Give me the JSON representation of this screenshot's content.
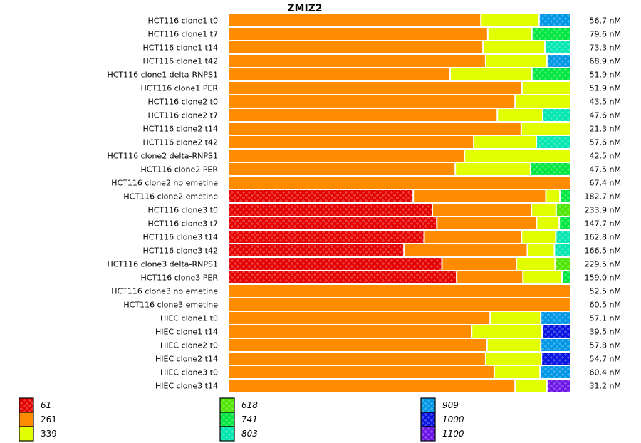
{
  "chart_data": {
    "type": "bar",
    "orientation": "horizontal",
    "stacked": "percent",
    "title": "ZMIZ2",
    "xlabel": "",
    "ylabel": "",
    "value_unit": "nM",
    "legend_position": "bottom",
    "legend": [
      {
        "key": "61",
        "color": "#e50000",
        "patterned": true,
        "italic": true
      },
      {
        "key": "261",
        "color": "#ff8c00",
        "patterned": false,
        "italic": false
      },
      {
        "key": "339",
        "color": "#e1ff00",
        "patterned": false,
        "italic": false
      },
      {
        "key": "618",
        "color": "#4ee600",
        "patterned": true,
        "italic": true
      },
      {
        "key": "741",
        "color": "#00e640",
        "patterned": true,
        "italic": true
      },
      {
        "key": "803",
        "color": "#00e6b0",
        "patterned": true,
        "italic": true
      },
      {
        "key": "909",
        "color": "#0096e6",
        "patterned": true,
        "italic": true
      },
      {
        "key": "1000",
        "color": "#0a14e0",
        "patterned": true,
        "italic": true
      },
      {
        "key": "1100",
        "color": "#6a14e6",
        "patterned": true,
        "italic": true
      }
    ],
    "rows": [
      {
        "label": "HCT116 clone1 t0",
        "total": "56.7 nM",
        "segments": [
          {
            "key": "261",
            "frac": 0.74
          },
          {
            "key": "339",
            "frac": 0.17
          },
          {
            "key": "909",
            "frac": 0.09
          }
        ]
      },
      {
        "label": "HCT116 clone1 t7",
        "total": "79.6 nM",
        "segments": [
          {
            "key": "261",
            "frac": 0.76
          },
          {
            "key": "339",
            "frac": 0.129
          },
          {
            "key": "741",
            "frac": 0.111
          }
        ]
      },
      {
        "label": "HCT116 clone1 t14",
        "total": "73.3 nM",
        "segments": [
          {
            "key": "261",
            "frac": 0.746
          },
          {
            "key": "339",
            "frac": 0.181
          },
          {
            "key": "803",
            "frac": 0.073
          }
        ]
      },
      {
        "label": "HCT116 clone1 t42",
        "total": "68.9 nM",
        "segments": [
          {
            "key": "261",
            "frac": 0.754
          },
          {
            "key": "339",
            "frac": 0.179
          },
          {
            "key": "909",
            "frac": 0.067
          }
        ]
      },
      {
        "label": "HCT116 clone1 delta-RNPS1",
        "total": "51.9 nM",
        "segments": [
          {
            "key": "261",
            "frac": 0.65
          },
          {
            "key": "339",
            "frac": 0.239
          },
          {
            "key": "741",
            "frac": 0.111
          }
        ]
      },
      {
        "label": "HCT116 clone1 PER",
        "total": "51.9 nM",
        "segments": [
          {
            "key": "261",
            "frac": 0.86
          },
          {
            "key": "339",
            "frac": 0.14
          }
        ]
      },
      {
        "label": "HCT116 clone2 t0",
        "total": "43.5 nM",
        "segments": [
          {
            "key": "261",
            "frac": 0.84
          },
          {
            "key": "339",
            "frac": 0.16
          }
        ]
      },
      {
        "label": "HCT116 clone2 t7",
        "total": "47.6 nM",
        "segments": [
          {
            "key": "261",
            "frac": 0.788
          },
          {
            "key": "339",
            "frac": 0.133
          },
          {
            "key": "803",
            "frac": 0.079
          }
        ]
      },
      {
        "label": "HCT116 clone2 t14",
        "total": "21.3 nM",
        "segments": [
          {
            "key": "261",
            "frac": 0.858
          },
          {
            "key": "339",
            "frac": 0.142
          }
        ]
      },
      {
        "label": "HCT116 clone2 t42",
        "total": "57.6 nM",
        "segments": [
          {
            "key": "261",
            "frac": 0.719
          },
          {
            "key": "339",
            "frac": 0.183
          },
          {
            "key": "803",
            "frac": 0.098
          }
        ]
      },
      {
        "label": "HCT116 clone2 delta-RNPS1",
        "total": "42.5 nM",
        "segments": [
          {
            "key": "261",
            "frac": 0.692
          },
          {
            "key": "339",
            "frac": 0.308
          }
        ]
      },
      {
        "label": "HCT116 clone2 PER",
        "total": "47.5 nM",
        "segments": [
          {
            "key": "261",
            "frac": 0.665
          },
          {
            "key": "339",
            "frac": 0.22
          },
          {
            "key": "741",
            "frac": 0.115
          }
        ]
      },
      {
        "label": "HCT116 clone2 no emetine",
        "total": "67.4 nM",
        "segments": [
          {
            "key": "261",
            "frac": 1.0
          }
        ]
      },
      {
        "label": "HCT116 clone2 emetine",
        "total": "182.7 nM",
        "segments": [
          {
            "key": "61",
            "frac": 0.542
          },
          {
            "key": "261",
            "frac": 0.388
          },
          {
            "key": "339",
            "frac": 0.041
          },
          {
            "key": "741",
            "frac": 0.029
          }
        ]
      },
      {
        "label": "HCT116 clone3 t0",
        "total": "233.9 nM",
        "segments": [
          {
            "key": "61",
            "frac": 0.598
          },
          {
            "key": "261",
            "frac": 0.29
          },
          {
            "key": "339",
            "frac": 0.072
          },
          {
            "key": "618",
            "frac": 0.04
          }
        ]
      },
      {
        "label": "HCT116 clone3 t7",
        "total": "147.7 nM",
        "segments": [
          {
            "key": "61",
            "frac": 0.611
          },
          {
            "key": "261",
            "frac": 0.292
          },
          {
            "key": "339",
            "frac": 0.066
          },
          {
            "key": "741",
            "frac": 0.031
          }
        ]
      },
      {
        "label": "HCT116 clone3 t14",
        "total": "162.8 nM",
        "segments": [
          {
            "key": "61",
            "frac": 0.574
          },
          {
            "key": "261",
            "frac": 0.285
          },
          {
            "key": "339",
            "frac": 0.1
          },
          {
            "key": "803",
            "frac": 0.041
          }
        ]
      },
      {
        "label": "HCT116 clone3 t42",
        "total": "166.5 nM",
        "segments": [
          {
            "key": "61",
            "frac": 0.515
          },
          {
            "key": "261",
            "frac": 0.361
          },
          {
            "key": "339",
            "frac": 0.079
          },
          {
            "key": "803",
            "frac": 0.045
          }
        ]
      },
      {
        "label": "HCT116 clone3 delta-RNPS1",
        "total": "229.5 nM",
        "segments": [
          {
            "key": "61",
            "frac": 0.626
          },
          {
            "key": "261",
            "frac": 0.218
          },
          {
            "key": "339",
            "frac": 0.113
          },
          {
            "key": "618",
            "frac": 0.043
          }
        ]
      },
      {
        "label": "HCT116 clone3 PER",
        "total": "159.0 nM",
        "segments": [
          {
            "key": "61",
            "frac": 0.669
          },
          {
            "key": "261",
            "frac": 0.194
          },
          {
            "key": "339",
            "frac": 0.114
          },
          {
            "key": "741",
            "frac": 0.023
          }
        ]
      },
      {
        "label": "HCT116 clone3 no emetine",
        "total": "52.5 nM",
        "segments": [
          {
            "key": "261",
            "frac": 1.0
          }
        ]
      },
      {
        "label": "HCT116 clone3 emetine",
        "total": "60.5 nM",
        "segments": [
          {
            "key": "261",
            "frac": 1.0
          }
        ]
      },
      {
        "label": "HIEC clone1 t0",
        "total": "57.1 nM",
        "segments": [
          {
            "key": "261",
            "frac": 0.767
          },
          {
            "key": "339",
            "frac": 0.148
          },
          {
            "key": "909",
            "frac": 0.085
          }
        ]
      },
      {
        "label": "HIEC clone1 t14",
        "total": "39.5 nM",
        "segments": [
          {
            "key": "261",
            "frac": 0.713
          },
          {
            "key": "339",
            "frac": 0.206
          },
          {
            "key": "1000",
            "frac": 0.081
          }
        ]
      },
      {
        "label": "HIEC clone2 t0",
        "total": "57.8 nM",
        "segments": [
          {
            "key": "261",
            "frac": 0.758
          },
          {
            "key": "339",
            "frac": 0.157
          },
          {
            "key": "909",
            "frac": 0.085
          }
        ]
      },
      {
        "label": "HIEC clone2 t14",
        "total": "54.7 nM",
        "segments": [
          {
            "key": "261",
            "frac": 0.754
          },
          {
            "key": "339",
            "frac": 0.163
          },
          {
            "key": "1000",
            "frac": 0.083
          }
        ]
      },
      {
        "label": "HIEC clone3 t0",
        "total": "60.4 nM",
        "segments": [
          {
            "key": "261",
            "frac": 0.779
          },
          {
            "key": "339",
            "frac": 0.134
          },
          {
            "key": "909",
            "frac": 0.087
          }
        ]
      },
      {
        "label": "HIEC clone3 t14",
        "total": "31.2 nM",
        "segments": [
          {
            "key": "261",
            "frac": 0.84
          },
          {
            "key": "339",
            "frac": 0.093
          },
          {
            "key": "1100",
            "frac": 0.067
          }
        ]
      }
    ]
  }
}
